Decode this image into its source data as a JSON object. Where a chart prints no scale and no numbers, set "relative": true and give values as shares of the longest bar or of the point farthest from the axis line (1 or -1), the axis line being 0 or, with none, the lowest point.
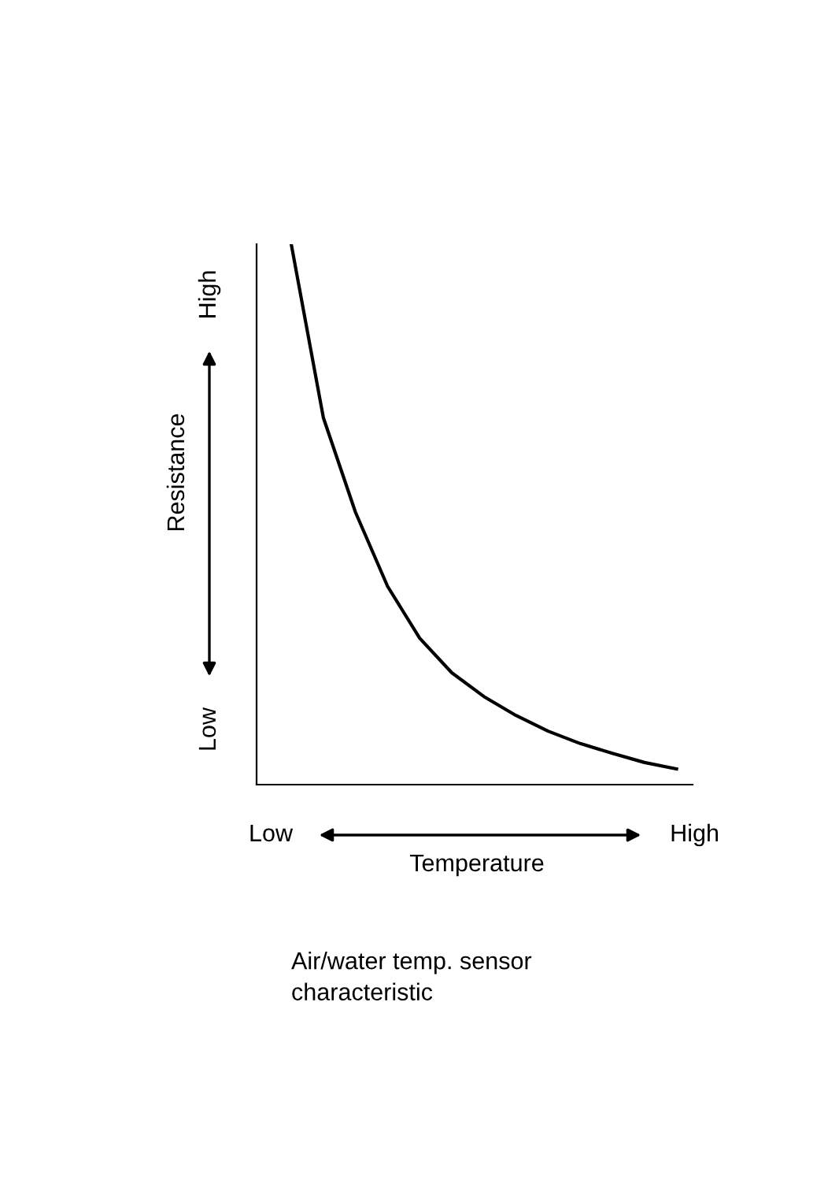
{
  "chart_data": {
    "type": "line",
    "relative": true,
    "xlabel": "Temperature",
    "ylabel": "Resistance",
    "categories": [
      null,
      null,
      null,
      null,
      null,
      null,
      null,
      null,
      null,
      null,
      null,
      null,
      null
    ],
    "series": [
      {
        "color": "#000000",
        "values": [
          1,
          0.679,
          0.504,
          0.367,
          0.271,
          0.207,
          0.163,
          0.128,
          0.099,
          0.076,
          0.058,
          0.041,
          0.029
        ]
      }
    ],
    "annotations": [
      "Low",
      "High",
      "Low",
      "High",
      "Air/water temp. sensor\ncharacteristic"
    ],
    "legend": false,
    "marker": "none",
    "line_style": "solid"
  }
}
